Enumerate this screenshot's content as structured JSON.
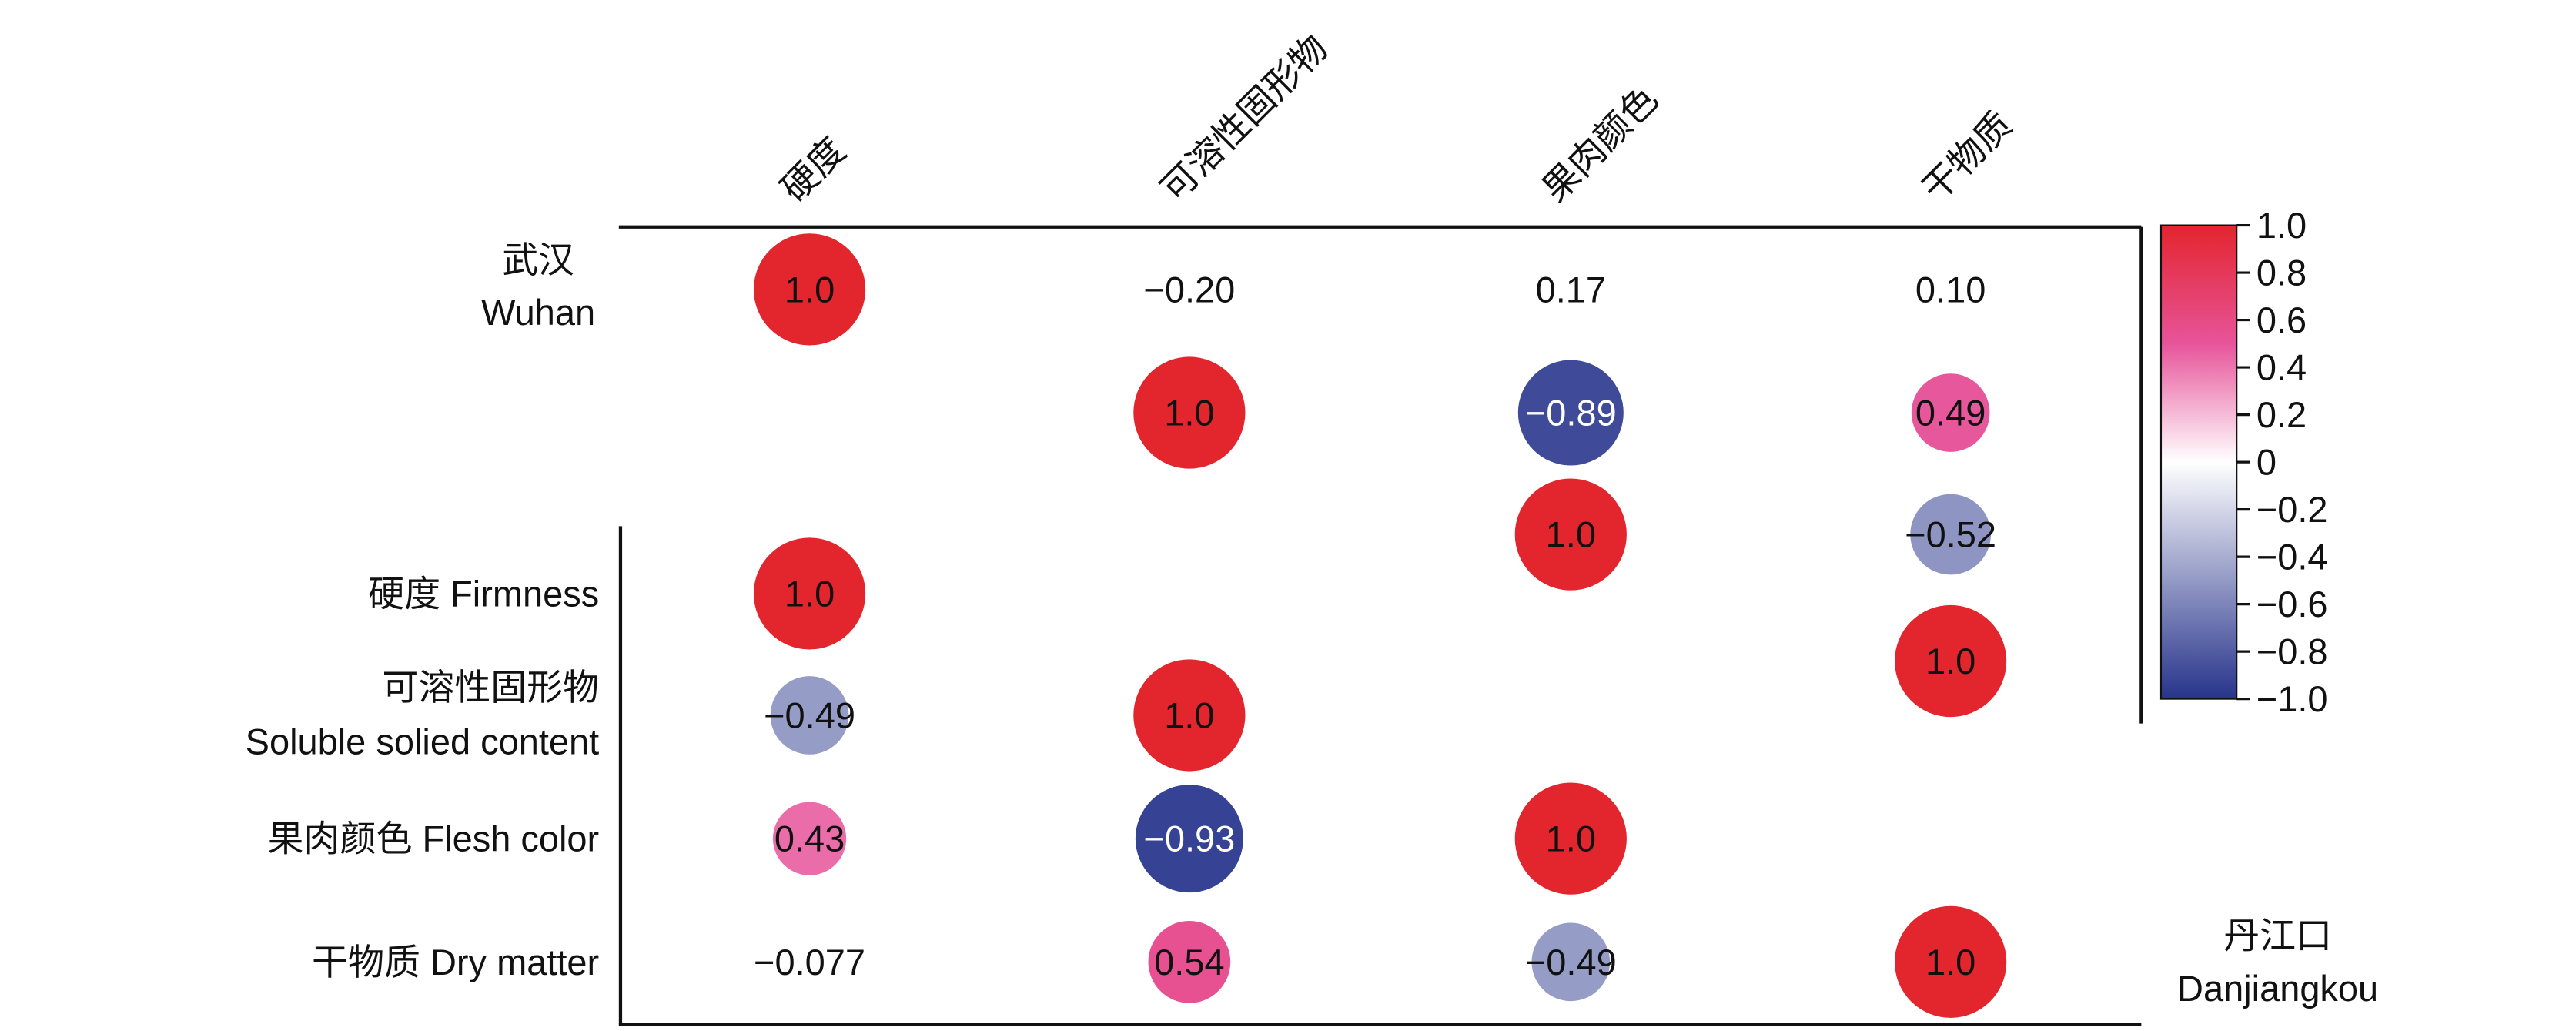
{
  "chart_data": {
    "type": "heatmap",
    "variables_cn": [
      "硬度",
      "可溶性固形物",
      "果肉颜色",
      "干物质"
    ],
    "row_labels": [
      {
        "cn": "硬度",
        "en": "Firmness"
      },
      {
        "cn": "可溶性固形物",
        "en": "Soluble solied content"
      },
      {
        "cn": "果肉颜色",
        "en": "Flesh color"
      },
      {
        "cn": "干物质",
        "en": "Dry matter"
      }
    ],
    "groups": {
      "upper": {
        "cn": "武汉",
        "en": "Wuhan"
      },
      "lower": {
        "cn": "丹江口",
        "en": "Danjiangkou"
      }
    },
    "upper_cells": [
      {
        "row": 0,
        "col": 0,
        "value": 1.0,
        "label": "1.0",
        "marker": true
      },
      {
        "row": 0,
        "col": 1,
        "value": -0.2,
        "label": "−0.20",
        "marker": false
      },
      {
        "row": 0,
        "col": 2,
        "value": 0.17,
        "label": "0.17",
        "marker": false
      },
      {
        "row": 0,
        "col": 3,
        "value": 0.1,
        "label": "0.10",
        "marker": false
      },
      {
        "row": 1,
        "col": 1,
        "value": 1.0,
        "label": "1.0",
        "marker": true
      },
      {
        "row": 1,
        "col": 2,
        "value": -0.89,
        "label": "−0.89",
        "marker": true
      },
      {
        "row": 1,
        "col": 3,
        "value": 0.49,
        "label": "0.49",
        "marker": true
      },
      {
        "row": 2,
        "col": 2,
        "value": 1.0,
        "label": "1.0",
        "marker": true
      },
      {
        "row": 2,
        "col": 3,
        "value": -0.52,
        "label": "−0.52",
        "marker": true
      },
      {
        "row": 3,
        "col": 3,
        "value": 1.0,
        "label": "1.0",
        "marker": true
      }
    ],
    "lower_cells": [
      {
        "row": 0,
        "col": 0,
        "value": 1.0,
        "label": "1.0",
        "marker": true
      },
      {
        "row": 1,
        "col": 0,
        "value": -0.49,
        "label": "−0.49",
        "marker": true
      },
      {
        "row": 1,
        "col": 1,
        "value": 1.0,
        "label": "1.0",
        "marker": true
      },
      {
        "row": 2,
        "col": 0,
        "value": 0.43,
        "label": "0.43",
        "marker": true
      },
      {
        "row": 2,
        "col": 1,
        "value": -0.93,
        "label": "−0.93",
        "marker": true
      },
      {
        "row": 2,
        "col": 2,
        "value": 1.0,
        "label": "1.0",
        "marker": true
      },
      {
        "row": 3,
        "col": 0,
        "value": -0.077,
        "label": "−0.077",
        "marker": false
      },
      {
        "row": 3,
        "col": 1,
        "value": 0.54,
        "label": "0.54",
        "marker": true
      },
      {
        "row": 3,
        "col": 2,
        "value": -0.49,
        "label": "−0.49",
        "marker": true
      },
      {
        "row": 3,
        "col": 3,
        "value": 1.0,
        "label": "1.0",
        "marker": true
      }
    ],
    "colorbar": {
      "range": [
        -1.0,
        1.0
      ],
      "ticks": [
        "1.0",
        "0.8",
        "0.6",
        "0.4",
        "0.2",
        "0",
        "−0.2",
        "−0.4",
        "−0.6",
        "−0.8",
        "−1.0"
      ],
      "colors": {
        "negative": "#27348b",
        "zero": "#ffffff",
        "mid_positive": "#e7549a",
        "positive": "#e3252d"
      }
    }
  }
}
